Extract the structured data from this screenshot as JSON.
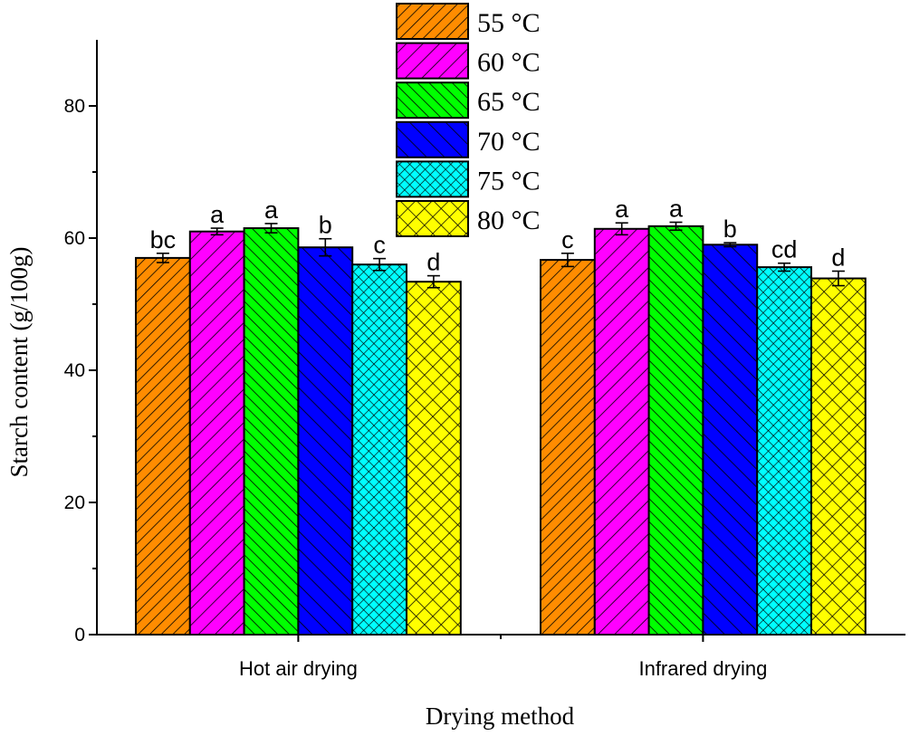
{
  "chart_data": {
    "type": "bar",
    "title": "",
    "xlabel": "Drying method",
    "ylabel": "Starch content (g/100g)",
    "ylim": [
      0,
      90
    ],
    "yticks": [
      0,
      20,
      40,
      60,
      80
    ],
    "categories": [
      "Hot air drying",
      "Infrared drying"
    ],
    "legend_position": "top-center",
    "series": [
      {
        "name": "55 °C",
        "color": "#FF8C00",
        "pattern": "diag-right-dense",
        "values": [
          57.0,
          56.7
        ],
        "errors": [
          0.7,
          1.0
        ],
        "letters": [
          "bc",
          "c"
        ]
      },
      {
        "name": "60 °C",
        "color": "#FF00FF",
        "pattern": "diag-right",
        "values": [
          61.0,
          61.4
        ],
        "errors": [
          0.5,
          0.9
        ],
        "letters": [
          "a",
          "a"
        ]
      },
      {
        "name": "65 °C",
        "color": "#00FF00",
        "pattern": "diag-left-dense",
        "values": [
          61.5,
          61.8
        ],
        "errors": [
          0.7,
          0.6
        ],
        "letters": [
          "a",
          "a"
        ]
      },
      {
        "name": "70 °C",
        "color": "#0000FF",
        "pattern": "diag-left",
        "values": [
          58.6,
          59.0
        ],
        "errors": [
          1.3,
          0.3
        ],
        "letters": [
          "b",
          "b"
        ]
      },
      {
        "name": "75 °C",
        "color": "#00FFFF",
        "pattern": "cross-dense",
        "values": [
          56.0,
          55.6
        ],
        "errors": [
          0.9,
          0.6
        ],
        "letters": [
          "c",
          "cd"
        ]
      },
      {
        "name": "80 °C",
        "color": "#FFFF00",
        "pattern": "cross",
        "values": [
          53.4,
          53.9
        ],
        "errors": [
          0.9,
          1.1
        ],
        "letters": [
          "d",
          "d"
        ]
      }
    ]
  }
}
